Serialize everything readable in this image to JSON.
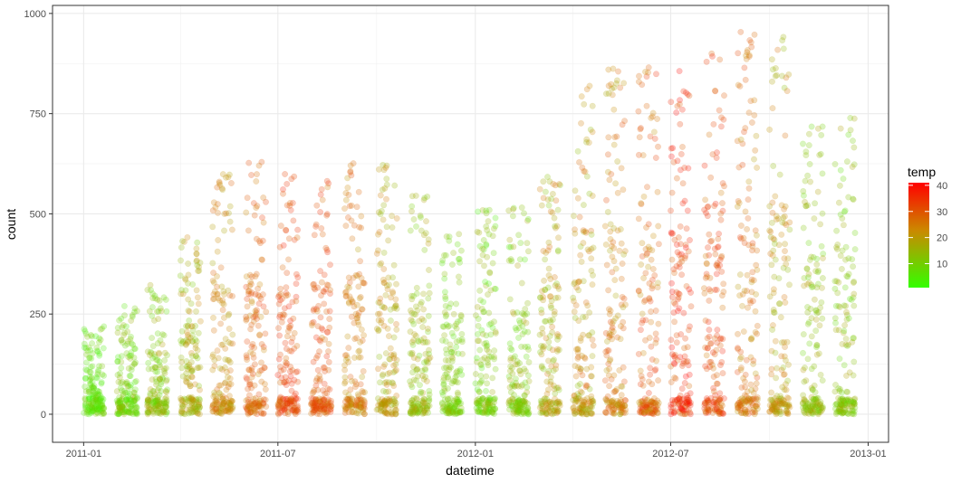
{
  "chart_data": {
    "type": "scatter",
    "xlabel": "datetime",
    "ylabel": "count",
    "x_range": [
      "2010-12-03",
      "2013-01-20"
    ],
    "ylim": [
      -70,
      1020
    ],
    "x_ticks": [
      {
        "date": "2011-01-01",
        "label": "2011-01"
      },
      {
        "date": "2011-07-01",
        "label": "2011-07"
      },
      {
        "date": "2012-01-01",
        "label": "2012-01"
      },
      {
        "date": "2012-07-01",
        "label": "2012-07"
      },
      {
        "date": "2013-01-01",
        "label": "2013-01"
      }
    ],
    "y_ticks": [
      0,
      250,
      500,
      750,
      1000
    ],
    "grid": true,
    "theme": "bw",
    "point_alpha": 0.25,
    "legend": {
      "title": "temp",
      "placement": "right",
      "ticks": [
        10,
        20,
        30,
        40
      ],
      "range": [
        0.82,
        41
      ],
      "color_low": "#33ff00",
      "color_mid": "#cc8800",
      "color_high": "#ff0000"
    },
    "monthly_summary": {
      "note_fields": [
        "month",
        "max_count",
        "temp_low",
        "temp_high"
      ],
      "months": [
        {
          "month": "2011-01",
          "max_count": 220,
          "temp_low": 2,
          "temp_high": 12
        },
        {
          "month": "2011-02",
          "max_count": 270,
          "temp_low": 3,
          "temp_high": 16
        },
        {
          "month": "2011-03",
          "max_count": 330,
          "temp_low": 6,
          "temp_high": 20
        },
        {
          "month": "2011-04",
          "max_count": 450,
          "temp_low": 10,
          "temp_high": 24
        },
        {
          "month": "2011-05",
          "max_count": 610,
          "temp_low": 17,
          "temp_high": 29
        },
        {
          "month": "2011-06",
          "max_count": 640,
          "temp_low": 22,
          "temp_high": 34
        },
        {
          "month": "2011-07",
          "max_count": 600,
          "temp_low": 26,
          "temp_high": 38
        },
        {
          "month": "2011-08",
          "max_count": 590,
          "temp_low": 24,
          "temp_high": 36
        },
        {
          "month": "2011-09",
          "max_count": 630,
          "temp_low": 19,
          "temp_high": 31
        },
        {
          "month": "2011-10",
          "max_count": 625,
          "temp_low": 13,
          "temp_high": 27
        },
        {
          "month": "2011-11",
          "max_count": 550,
          "temp_low": 8,
          "temp_high": 21
        },
        {
          "month": "2011-12",
          "max_count": 460,
          "temp_low": 5,
          "temp_high": 16
        },
        {
          "month": "2012-01",
          "max_count": 510,
          "temp_low": 3,
          "temp_high": 17
        },
        {
          "month": "2012-02",
          "max_count": 540,
          "temp_low": 5,
          "temp_high": 19
        },
        {
          "month": "2012-03",
          "max_count": 620,
          "temp_low": 10,
          "temp_high": 27
        },
        {
          "month": "2012-04",
          "max_count": 820,
          "temp_low": 13,
          "temp_high": 29
        },
        {
          "month": "2012-05",
          "max_count": 870,
          "temp_low": 17,
          "temp_high": 32
        },
        {
          "month": "2012-06",
          "max_count": 870,
          "temp_low": 20,
          "temp_high": 36
        },
        {
          "month": "2012-07",
          "max_count": 870,
          "temp_low": 27,
          "temp_high": 41
        },
        {
          "month": "2012-08",
          "max_count": 900,
          "temp_low": 24,
          "temp_high": 38
        },
        {
          "month": "2012-09",
          "max_count": 975,
          "temp_low": 19,
          "temp_high": 33
        },
        {
          "month": "2012-10",
          "max_count": 945,
          "temp_low": 13,
          "temp_high": 27
        },
        {
          "month": "2012-11",
          "max_count": 720,
          "temp_low": 7,
          "temp_high": 20
        },
        {
          "month": "2012-12",
          "max_count": 760,
          "temp_low": 6,
          "temp_high": 19
        }
      ]
    }
  }
}
